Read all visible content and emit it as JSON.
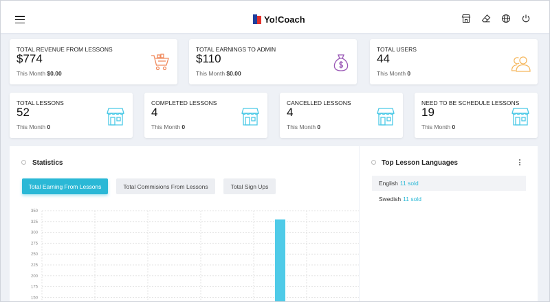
{
  "header": {
    "logo_text": "Yo!Coach",
    "icons": [
      "store-icon",
      "eraser-icon",
      "globe-icon",
      "power-icon"
    ]
  },
  "stats_row1": [
    {
      "title": "TOTAL REVENUE FROM LESSONS",
      "value": "$774",
      "sub_label": "This Month",
      "sub_value": "$0.00",
      "icon": "cart-icon",
      "icon_color": "#f08a5d"
    },
    {
      "title": "TOTAL EARNINGS TO ADMIN",
      "value": "$110",
      "sub_label": "This Month",
      "sub_value": "$0.00",
      "icon": "money-bag-icon",
      "icon_color": "#9b59b6"
    },
    {
      "title": "TOTAL USERS",
      "value": "44",
      "sub_label": "This Month",
      "sub_value": "0",
      "icon": "users-icon",
      "icon_color": "#f5b75e"
    }
  ],
  "stats_row2": [
    {
      "title": "TOTAL LESSONS",
      "value": "52",
      "sub_label": "This Month",
      "sub_value": "0",
      "icon": "storefront-icon",
      "icon_color": "#4cc9e6"
    },
    {
      "title": "COMPLETED LESSONS",
      "value": "4",
      "sub_label": "This Month",
      "sub_value": "0",
      "icon": "storefront-icon",
      "icon_color": "#4cc9e6"
    },
    {
      "title": "CANCELLED LESSONS",
      "value": "4",
      "sub_label": "This Month",
      "sub_value": "0",
      "icon": "storefront-icon",
      "icon_color": "#4cc9e6"
    },
    {
      "title": "NEED TO BE SCHEDULE LESSONS",
      "value": "19",
      "sub_label": "This Month",
      "sub_value": "0",
      "icon": "storefront-icon",
      "icon_color": "#4cc9e6"
    }
  ],
  "statistics": {
    "title": "Statistics",
    "tabs": [
      {
        "label": "Total Earning From Lessons",
        "active": true
      },
      {
        "label": "Total Commisions From Lessons",
        "active": false
      },
      {
        "label": "Total Sign Ups",
        "active": false
      }
    ]
  },
  "languages": {
    "title": "Top Lesson Languages",
    "items": [
      {
        "name": "English",
        "count": "11 sold"
      },
      {
        "name": "Swedish",
        "count": "11 sold"
      }
    ]
  },
  "chart_data": {
    "type": "bar",
    "y_ticks": [
      350,
      325,
      300,
      275,
      250,
      225,
      200,
      175,
      150
    ],
    "ylim": [
      150,
      350
    ],
    "bars": [
      {
        "column": 4,
        "value": 330
      }
    ],
    "bar_color": "#4fcbe8",
    "grid": true
  }
}
